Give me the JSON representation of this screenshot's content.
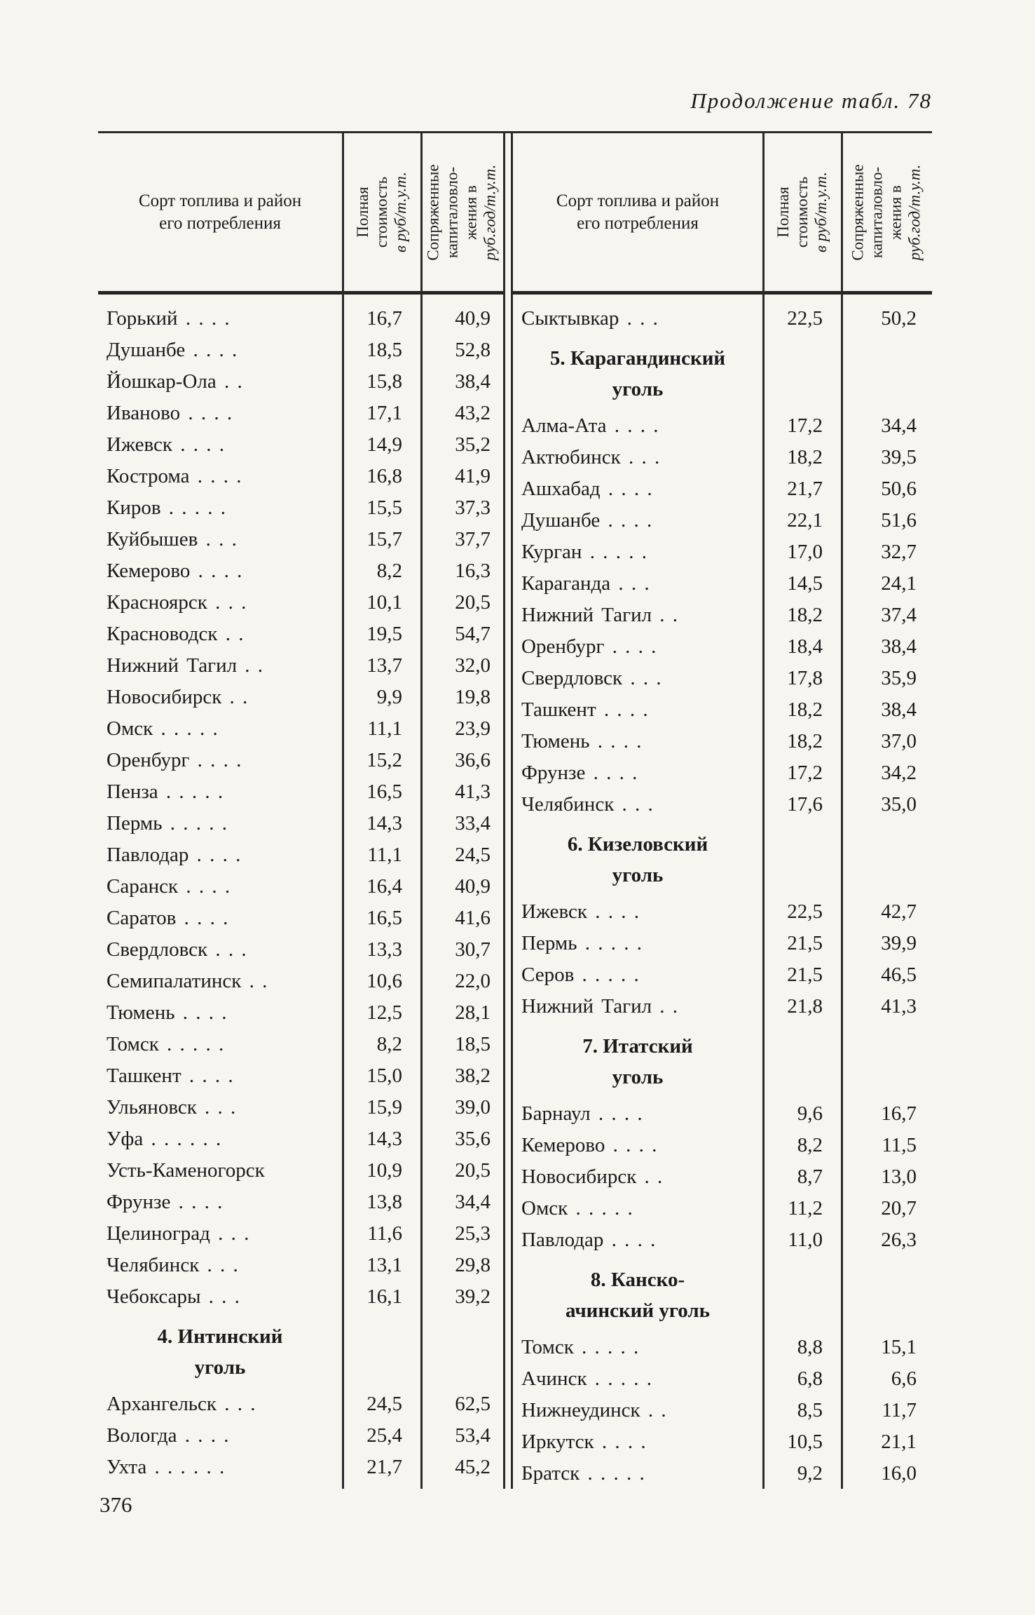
{
  "page": {
    "continuation_title": "Продолжение табл. 78",
    "page_number": "376"
  },
  "headers": {
    "region": [
      "Сорт топлива и район",
      "его потребления"
    ],
    "cost": [
      "Полная",
      "стоимость",
      "в руб/т.у.т."
    ],
    "capital": [
      "Сопряженные",
      "капиталовло-",
      "жения в",
      "руб.год/т.у.т."
    ]
  },
  "table": {
    "left": {
      "rows": [
        {
          "label": "Горький . . . .",
          "cost": "16,7",
          "capital": "40,9"
        },
        {
          "label": "Душанбе . . . .",
          "cost": "18,5",
          "capital": "52,8"
        },
        {
          "label": "Йошкар-Ола . .",
          "cost": "15,8",
          "capital": "38,4"
        },
        {
          "label": "Иваново . . . .",
          "cost": "17,1",
          "capital": "43,2"
        },
        {
          "label": "Ижевск . . . .",
          "cost": "14,9",
          "capital": "35,2"
        },
        {
          "label": "Кострома . . . .",
          "cost": "16,8",
          "capital": "41,9"
        },
        {
          "label": "Киров . . . . .",
          "cost": "15,5",
          "capital": "37,3"
        },
        {
          "label": "Куйбышев . . .",
          "cost": "15,7",
          "capital": "37,7"
        },
        {
          "label": "Кемерово . . . .",
          "cost": "8,2",
          "capital": "16,3"
        },
        {
          "label": "Красноярск . . .",
          "cost": "10,1",
          "capital": "20,5"
        },
        {
          "label": "Красноводск . .",
          "cost": "19,5",
          "capital": "54,7"
        },
        {
          "label": "Нижний Тагил . .",
          "cost": "13,7",
          "capital": "32,0"
        },
        {
          "label": "Новосибирск . .",
          "cost": "9,9",
          "capital": "19,8"
        },
        {
          "label": "Омск . . . . .",
          "cost": "11,1",
          "capital": "23,9"
        },
        {
          "label": "Оренбург . . . .",
          "cost": "15,2",
          "capital": "36,6"
        },
        {
          "label": "Пенза . . . . .",
          "cost": "16,5",
          "capital": "41,3"
        },
        {
          "label": "Пермь . . . . .",
          "cost": "14,3",
          "capital": "33,4"
        },
        {
          "label": "Павлодар . . . .",
          "cost": "11,1",
          "capital": "24,5"
        },
        {
          "label": "Саранск . . . .",
          "cost": "16,4",
          "capital": "40,9"
        },
        {
          "label": "Саратов . . . .",
          "cost": "16,5",
          "capital": "41,6"
        },
        {
          "label": "Свердловск . . .",
          "cost": "13,3",
          "capital": "30,7"
        },
        {
          "label": "Семипалатинск . .",
          "cost": "10,6",
          "capital": "22,0"
        },
        {
          "label": "Тюмень . . . .",
          "cost": "12,5",
          "capital": "28,1"
        },
        {
          "label": "Томск . . . . .",
          "cost": "8,2",
          "capital": "18,5"
        },
        {
          "label": "Ташкент . . . .",
          "cost": "15,0",
          "capital": "38,2"
        },
        {
          "label": "Ульяновск . . .",
          "cost": "15,9",
          "capital": "39,0"
        },
        {
          "label": "Уфа . . . . . .",
          "cost": "14,3",
          "capital": "35,6"
        },
        {
          "label": "Усть-Каменогорск",
          "cost": "10,9",
          "capital": "20,5"
        },
        {
          "label": "Фрунзе . . . .",
          "cost": "13,8",
          "capital": "34,4"
        },
        {
          "label": "Целиноград . . .",
          "cost": "11,6",
          "capital": "25,3"
        },
        {
          "label": "Челябинск . . .",
          "cost": "13,1",
          "capital": "29,8"
        },
        {
          "label": "Чебоксары . . .",
          "cost": "16,1",
          "capital": "39,2"
        },
        {
          "section": [
            "4. Интинский",
            "уголь"
          ]
        },
        {
          "label": "Архангельск . . .",
          "cost": "24,5",
          "capital": "62,5"
        },
        {
          "label": "Вологда . . . .",
          "cost": "25,4",
          "capital": "53,4"
        },
        {
          "label": "Ухта . . . . . .",
          "cost": "21,7",
          "capital": "45,2"
        }
      ]
    },
    "right": {
      "rows": [
        {
          "label": "Сыктывкар . . .",
          "cost": "22,5",
          "capital": "50,2"
        },
        {
          "section": [
            "5. Карагандинский",
            "уголь"
          ]
        },
        {
          "label": "Алма-Ата . . . .",
          "cost": "17,2",
          "capital": "34,4"
        },
        {
          "label": "Актюбинск . . .",
          "cost": "18,2",
          "capital": "39,5"
        },
        {
          "label": "Ашхабад . . . .",
          "cost": "21,7",
          "capital": "50,6"
        },
        {
          "label": "Душанбе . . . .",
          "cost": "22,1",
          "capital": "51,6"
        },
        {
          "label": "Курган . . . . .",
          "cost": "17,0",
          "capital": "32,7"
        },
        {
          "label": "Караганда . . .",
          "cost": "14,5",
          "capital": "24,1"
        },
        {
          "label": "Нижний Тагил . .",
          "cost": "18,2",
          "capital": "37,4"
        },
        {
          "label": "Оренбург . . . .",
          "cost": "18,4",
          "capital": "38,4"
        },
        {
          "label": "Свердловск . . .",
          "cost": "17,8",
          "capital": "35,9"
        },
        {
          "label": "Ташкент . . . .",
          "cost": "18,2",
          "capital": "38,4"
        },
        {
          "label": "Тюмень . . . .",
          "cost": "18,2",
          "capital": "37,0"
        },
        {
          "label": "Фрунзе . . . .",
          "cost": "17,2",
          "capital": "34,2"
        },
        {
          "label": "Челябинск . . .",
          "cost": "17,6",
          "capital": "35,0"
        },
        {
          "section": [
            "6. Кизеловский",
            "уголь"
          ]
        },
        {
          "label": "Ижевск . . . .",
          "cost": "22,5",
          "capital": "42,7"
        },
        {
          "label": "Пермь . . . . .",
          "cost": "21,5",
          "capital": "39,9"
        },
        {
          "label": "Серов . . . . .",
          "cost": "21,5",
          "capital": "46,5"
        },
        {
          "label": "Нижний Тагил . .",
          "cost": "21,8",
          "capital": "41,3"
        },
        {
          "section": [
            "7. Итатский",
            "уголь"
          ]
        },
        {
          "label": "Барнаул . . . .",
          "cost": "9,6",
          "capital": "16,7"
        },
        {
          "label": "Кемерово . . . .",
          "cost": "8,2",
          "capital": "11,5"
        },
        {
          "label": "Новосибирск . .",
          "cost": "8,7",
          "capital": "13,0"
        },
        {
          "label": "Омск . . . . .",
          "cost": "11,2",
          "capital": "20,7"
        },
        {
          "label": "Павлодар . . . .",
          "cost": "11,0",
          "capital": "26,3"
        },
        {
          "section": [
            "8. Канско-",
            "ачинский уголь"
          ]
        },
        {
          "label": "Томск . . . . .",
          "cost": "8,8",
          "capital": "15,1"
        },
        {
          "label": "Ачинск . . . . .",
          "cost": "6,8",
          "capital": "6,6"
        },
        {
          "label": "Нижнеудинск . .",
          "cost": "8,5",
          "capital": "11,7"
        },
        {
          "label": "Иркутск . . . .",
          "cost": "10,5",
          "capital": "21,1"
        },
        {
          "label": "Братск . . . . .",
          "cost": "9,2",
          "capital": "16,0"
        }
      ]
    }
  }
}
